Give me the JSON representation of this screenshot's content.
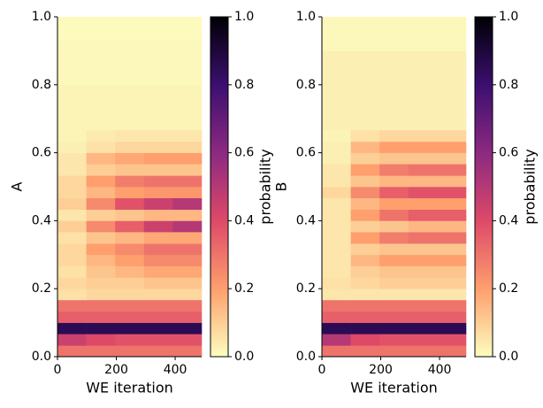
{
  "chart_data": [
    {
      "type": "heatmap",
      "y_label": "A",
      "x_label": "WE iteration",
      "colorbar_label": "probability",
      "x_bins": [
        0,
        98,
        196,
        294,
        392,
        490
      ],
      "y_bins": [
        0,
        0.033,
        0.067,
        0.1,
        0.133,
        0.167,
        0.2,
        0.233,
        0.267,
        0.3,
        0.333,
        0.367,
        0.4,
        0.433,
        0.467,
        0.5,
        0.533,
        0.567,
        0.6,
        0.633,
        0.667,
        0.7,
        0.733,
        0.767,
        0.8,
        0.833,
        0.867,
        0.9,
        0.933,
        0.967,
        1
      ],
      "values": [
        [
          0.3,
          0.3,
          0.3,
          0.3,
          0.3
        ],
        [
          0.45,
          0.4,
          0.38,
          0.38,
          0.38
        ],
        [
          0.85,
          0.85,
          0.85,
          0.85,
          0.85
        ],
        [
          0.35,
          0.35,
          0.35,
          0.35,
          0.35
        ],
        [
          0.3,
          0.3,
          0.3,
          0.3,
          0.3
        ],
        [
          0.06,
          0.08,
          0.08,
          0.08,
          0.08
        ],
        [
          0.08,
          0.1,
          0.1,
          0.12,
          0.12
        ],
        [
          0.06,
          0.12,
          0.15,
          0.18,
          0.18
        ],
        [
          0.08,
          0.15,
          0.2,
          0.25,
          0.25
        ],
        [
          0.08,
          0.2,
          0.25,
          0.3,
          0.3
        ],
        [
          0.06,
          0.12,
          0.15,
          0.18,
          0.18
        ],
        [
          0.1,
          0.25,
          0.35,
          0.45,
          0.5
        ],
        [
          0.05,
          0.1,
          0.12,
          0.15,
          0.15
        ],
        [
          0.1,
          0.25,
          0.38,
          0.45,
          0.5
        ],
        [
          0.08,
          0.15,
          0.2,
          0.22,
          0.22
        ],
        [
          0.08,
          0.2,
          0.28,
          0.3,
          0.3
        ],
        [
          0.05,
          0.1,
          0.12,
          0.12,
          0.12
        ],
        [
          0.05,
          0.15,
          0.18,
          0.2,
          0.2
        ],
        [
          0.03,
          0.06,
          0.08,
          0.08,
          0.08
        ],
        [
          0.02,
          0.04,
          0.05,
          0.05,
          0.05
        ],
        [
          0.02,
          0.02,
          0.02,
          0.02,
          0.02
        ],
        [
          0.02,
          0.02,
          0.02,
          0.02,
          0.02
        ],
        [
          0.02,
          0.02,
          0.02,
          0.02,
          0.02
        ],
        [
          0.02,
          0.02,
          0.02,
          0.02,
          0.02
        ],
        [
          0.01,
          0.01,
          0.01,
          0.01,
          0.01
        ],
        [
          0.01,
          0.01,
          0.01,
          0.01,
          0.01
        ],
        [
          0.01,
          0.01,
          0.01,
          0.01,
          0.01
        ],
        [
          0.01,
          0.01,
          0.01,
          0.01,
          0.01
        ],
        [
          0.005,
          0.005,
          0.005,
          0.005,
          0.005
        ],
        [
          0.005,
          0.005,
          0.005,
          0.005,
          0.005
        ]
      ],
      "xlim": [
        0,
        490
      ],
      "xticks": [
        0,
        200,
        400
      ],
      "ylim": [
        0,
        1
      ],
      "yticks": [
        {
          "value": 0,
          "label": "0.0"
        },
        0.2,
        0.4,
        0.6,
        0.8,
        {
          "value": 1,
          "label": "1.0"
        }
      ],
      "clim": [
        0,
        1
      ],
      "cticks": [
        {
          "value": 0,
          "label": "0.0"
        },
        0.2,
        0.4,
        0.6,
        0.8,
        {
          "value": 1,
          "label": "1.0"
        }
      ],
      "colormap": [
        "#fcfdbf",
        "#fe9f6d",
        "#de4968",
        "#8c2981",
        "#3b0f70",
        "#000004"
      ]
    },
    {
      "type": "heatmap",
      "y_label": "B",
      "x_label": "WE iteration",
      "colorbar_label": "probability",
      "x_bins": [
        0,
        98,
        196,
        294,
        392,
        490
      ],
      "y_bins": [
        0,
        0.033,
        0.067,
        0.1,
        0.133,
        0.167,
        0.2,
        0.233,
        0.267,
        0.3,
        0.333,
        0.367,
        0.4,
        0.433,
        0.467,
        0.5,
        0.533,
        0.567,
        0.6,
        0.633,
        0.667,
        0.7,
        0.733,
        0.767,
        0.8,
        0.833,
        0.867,
        0.9,
        0.933,
        0.967,
        1
      ],
      "values": [
        [
          0.3,
          0.3,
          0.3,
          0.3,
          0.3
        ],
        [
          0.5,
          0.4,
          0.38,
          0.38,
          0.38
        ],
        [
          0.85,
          0.85,
          0.85,
          0.85,
          0.85
        ],
        [
          0.35,
          0.35,
          0.35,
          0.35,
          0.35
        ],
        [
          0.3,
          0.3,
          0.3,
          0.3,
          0.3
        ],
        [
          0.05,
          0.05,
          0.05,
          0.05,
          0.05
        ],
        [
          0.06,
          0.08,
          0.1,
          0.1,
          0.1
        ],
        [
          0.05,
          0.1,
          0.12,
          0.12,
          0.12
        ],
        [
          0.05,
          0.15,
          0.2,
          0.2,
          0.2
        ],
        [
          0.05,
          0.1,
          0.12,
          0.12,
          0.12
        ],
        [
          0.05,
          0.2,
          0.28,
          0.3,
          0.3
        ],
        [
          0.05,
          0.1,
          0.12,
          0.15,
          0.15
        ],
        [
          0.05,
          0.2,
          0.3,
          0.35,
          0.35
        ],
        [
          0.05,
          0.15,
          0.2,
          0.2,
          0.2
        ],
        [
          0.08,
          0.25,
          0.35,
          0.38,
          0.38
        ],
        [
          0.05,
          0.12,
          0.15,
          0.15,
          0.15
        ],
        [
          0.05,
          0.2,
          0.28,
          0.3,
          0.3
        ],
        [
          0.03,
          0.1,
          0.12,
          0.12,
          0.12
        ],
        [
          0.03,
          0.15,
          0.2,
          0.2,
          0.2
        ],
        [
          0.02,
          0.06,
          0.08,
          0.08,
          0.08
        ],
        [
          0.03,
          0.03,
          0.03,
          0.03,
          0.03
        ],
        [
          0.03,
          0.03,
          0.03,
          0.03,
          0.03
        ],
        [
          0.03,
          0.03,
          0.03,
          0.03,
          0.03
        ],
        [
          0.03,
          0.03,
          0.03,
          0.03,
          0.03
        ],
        [
          0.03,
          0.03,
          0.03,
          0.03,
          0.03
        ],
        [
          0.03,
          0.03,
          0.03,
          0.03,
          0.03
        ],
        [
          0.03,
          0.03,
          0.03,
          0.03,
          0.03
        ],
        [
          0.01,
          0.01,
          0.01,
          0.01,
          0.01
        ],
        [
          0.01,
          0.01,
          0.01,
          0.01,
          0.01
        ],
        [
          0.01,
          0.01,
          0.01,
          0.01,
          0.01
        ]
      ],
      "xlim": [
        0,
        490
      ],
      "xticks": [
        0,
        200,
        400
      ],
      "ylim": [
        0,
        1
      ],
      "yticks": [
        {
          "value": 0,
          "label": "0.0"
        },
        0.2,
        0.4,
        0.6,
        0.8,
        {
          "value": 1,
          "label": "1.0"
        }
      ],
      "clim": [
        0,
        1
      ],
      "cticks": [
        {
          "value": 0,
          "label": "0.0"
        },
        0.2,
        0.4,
        0.6,
        0.8,
        {
          "value": 1,
          "label": "1.0"
        }
      ],
      "colormap": [
        "#fcfdbf",
        "#fe9f6d",
        "#de4968",
        "#8c2981",
        "#3b0f70",
        "#000004"
      ]
    }
  ]
}
